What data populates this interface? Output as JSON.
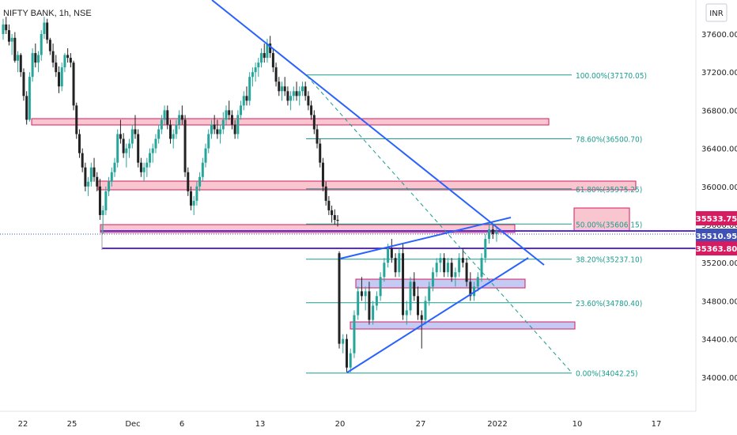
{
  "header": {
    "symbol_label": "NIFTY BANK, 1h, NSE"
  },
  "currency_badge": "INR",
  "colors": {
    "bull": "#26a69a",
    "bear": "#222222",
    "fib": "#1a9c8e",
    "trend": "#2962ff",
    "zone_red_fill": "#f7b8c4",
    "zone_red_stroke": "#d81b60",
    "zone_blue_fill": "#b9c2f3",
    "zone_blue_stroke": "#d81b60",
    "purple_line": "#5b2bd3",
    "tag_bg": "#d81b60",
    "tag_blue": "#3f51b5"
  },
  "chart_data": {
    "type": "candlestick",
    "y_axis": {
      "range": [
        33800,
        37850
      ],
      "ticks": [
        "37600.00",
        "37200.00",
        "36800.00",
        "36400.00",
        "36000.00",
        "35600.00",
        "35200.00",
        "34800.00",
        "34400.00",
        "34000.00"
      ]
    },
    "x_axis": {
      "ticks": [
        "22",
        "25",
        "Dec",
        "6",
        "13",
        "20",
        "27",
        "2022",
        "10",
        "17"
      ]
    },
    "price_tags": [
      {
        "label": "35533.75",
        "value": 35533.75,
        "style": "pink"
      },
      {
        "label": "35510.95",
        "value": 35510.95,
        "style": "blue"
      },
      {
        "label": "35363.80",
        "value": 35363.8,
        "style": "pink"
      }
    ],
    "fibonacci": [
      {
        "label": "100.00%(37170.05)",
        "value": 37170.05
      },
      {
        "label": "78.60%(36500.70)",
        "value": 36500.7
      },
      {
        "label": "61.80%(35975.25)",
        "value": 35975.25
      },
      {
        "label": "50.00%(35606.15)",
        "value": 35606.15
      },
      {
        "label": "38.20%(35237.10)",
        "value": 35237.1
      },
      {
        "label": "23.60%(34780.40)",
        "value": 34780.4
      },
      {
        "label": "0.00%(34042.25)",
        "value": 34042.25
      }
    ],
    "candles": [
      [
        37600,
        37760,
        37540,
        37700
      ],
      [
        37700,
        37780,
        37600,
        37640
      ],
      [
        37640,
        37700,
        37480,
        37520
      ],
      [
        37520,
        37600,
        37380,
        37560
      ],
      [
        37560,
        37620,
        37300,
        37320
      ],
      [
        37320,
        37420,
        37200,
        37380
      ],
      [
        37380,
        37400,
        37150,
        37200
      ],
      [
        37200,
        37240,
        36900,
        36950
      ],
      [
        36950,
        37000,
        36650,
        36700
      ],
      [
        36700,
        37200,
        36680,
        37150
      ],
      [
        37150,
        37450,
        37100,
        37400
      ],
      [
        37400,
        37500,
        37250,
        37300
      ],
      [
        37300,
        37420,
        37200,
        37380
      ],
      [
        37380,
        37640,
        37320,
        37600
      ],
      [
        37600,
        37780,
        37550,
        37720
      ],
      [
        37720,
        37760,
        37500,
        37540
      ],
      [
        37540,
        37560,
        37380,
        37420
      ],
      [
        37420,
        37500,
        37250,
        37300
      ],
      [
        37300,
        37380,
        37150,
        37200
      ],
      [
        37200,
        37260,
        36980,
        37050
      ],
      [
        37050,
        37300,
        37000,
        37250
      ],
      [
        37250,
        37400,
        37200,
        37380
      ],
      [
        37380,
        37450,
        37300,
        37350
      ],
      [
        37350,
        37400,
        37250,
        37300
      ],
      [
        37300,
        37320,
        36800,
        36850
      ],
      [
        36850,
        36880,
        36500,
        36550
      ],
      [
        36550,
        36600,
        36300,
        36350
      ],
      [
        36350,
        36400,
        36150,
        36200
      ],
      [
        36200,
        36250,
        35950,
        36000
      ],
      [
        36000,
        36100,
        35900,
        36050
      ],
      [
        36050,
        36250,
        36000,
        36200
      ],
      [
        36200,
        36300,
        36050,
        36100
      ],
      [
        36100,
        36150,
        35950,
        36000
      ],
      [
        36000,
        36080,
        35650,
        35700
      ],
      [
        35700,
        35800,
        35500,
        35750
      ],
      [
        35750,
        36000,
        35700,
        35950
      ],
      [
        35950,
        36100,
        35900,
        36050
      ],
      [
        36050,
        36200,
        36000,
        36150
      ],
      [
        36150,
        36300,
        36100,
        36250
      ],
      [
        36250,
        36600,
        36200,
        36550
      ],
      [
        36550,
        36700,
        36450,
        36500
      ],
      [
        36500,
        36560,
        36300,
        36350
      ],
      [
        36350,
        36450,
        36200,
        36400
      ],
      [
        36400,
        36500,
        36300,
        36450
      ],
      [
        36450,
        36650,
        36400,
        36600
      ],
      [
        36600,
        36750,
        36500,
        36550
      ],
      [
        36550,
        36600,
        36200,
        36250
      ],
      [
        36250,
        36300,
        36100,
        36150
      ],
      [
        36150,
        36250,
        36050,
        36200
      ],
      [
        36200,
        36300,
        36100,
        36250
      ],
      [
        36250,
        36400,
        36200,
        36350
      ],
      [
        36350,
        36450,
        36250,
        36400
      ],
      [
        36400,
        36550,
        36350,
        36500
      ],
      [
        36500,
        36650,
        36450,
        36600
      ],
      [
        36600,
        36750,
        36550,
        36700
      ],
      [
        36700,
        36850,
        36650,
        36800
      ],
      [
        36800,
        36850,
        36600,
        36650
      ],
      [
        36650,
        36700,
        36450,
        36500
      ],
      [
        36500,
        36600,
        36400,
        36550
      ],
      [
        36550,
        36700,
        36500,
        36650
      ],
      [
        36650,
        36800,
        36600,
        36750
      ],
      [
        36750,
        36850,
        36650,
        36700
      ],
      [
        36700,
        36750,
        36100,
        36150
      ],
      [
        36150,
        36200,
        35900,
        35950
      ],
      [
        35950,
        36000,
        35750,
        35800
      ],
      [
        35800,
        35900,
        35700,
        35850
      ],
      [
        35850,
        36050,
        35800,
        36000
      ],
      [
        36000,
        36150,
        35950,
        36100
      ],
      [
        36100,
        36300,
        36050,
        36250
      ],
      [
        36250,
        36450,
        36200,
        36400
      ],
      [
        36400,
        36600,
        36350,
        36550
      ],
      [
        36550,
        36700,
        36500,
        36650
      ],
      [
        36650,
        36750,
        36550,
        36600
      ],
      [
        36600,
        36700,
        36500,
        36550
      ],
      [
        36550,
        36650,
        36450,
        36600
      ],
      [
        36600,
        36780,
        36550,
        36700
      ],
      [
        36700,
        36850,
        36650,
        36800
      ],
      [
        36800,
        36900,
        36700,
        36750
      ],
      [
        36750,
        36800,
        36600,
        36650
      ],
      [
        36650,
        36700,
        36500,
        36550
      ],
      [
        36550,
        36800,
        36500,
        36750
      ],
      [
        36750,
        36900,
        36700,
        36850
      ],
      [
        36850,
        37000,
        36800,
        36950
      ],
      [
        36950,
        37050,
        36850,
        36900
      ],
      [
        36900,
        37200,
        36850,
        37150
      ],
      [
        37150,
        37250,
        37050,
        37200
      ],
      [
        37200,
        37300,
        37100,
        37250
      ],
      [
        37250,
        37350,
        37150,
        37300
      ],
      [
        37300,
        37450,
        37250,
        37400
      ],
      [
        37400,
        37500,
        37300,
        37350
      ],
      [
        37350,
        37550,
        37300,
        37500
      ],
      [
        37500,
        37580,
        37350,
        37400
      ],
      [
        37400,
        37450,
        37200,
        37250
      ],
      [
        37250,
        37300,
        37050,
        37100
      ],
      [
        37100,
        37150,
        36950,
        37000
      ],
      [
        37000,
        37100,
        36900,
        37050
      ],
      [
        37050,
        37150,
        36950,
        37000
      ],
      [
        37000,
        37050,
        36850,
        36900
      ],
      [
        36900,
        37000,
        36800,
        36950
      ],
      [
        36950,
        37050,
        36900,
        37000
      ],
      [
        37000,
        37100,
        36900,
        36950
      ],
      [
        36950,
        37050,
        36850,
        37000
      ],
      [
        37000,
        37100,
        36950,
        37050
      ],
      [
        37050,
        37100,
        36900,
        36950
      ],
      [
        36950,
        37000,
        36800,
        36850
      ],
      [
        36850,
        36900,
        36700,
        36750
      ],
      [
        36750,
        36800,
        36550,
        36600
      ],
      [
        36600,
        36650,
        36400,
        36450
      ],
      [
        36450,
        36500,
        36200,
        36250
      ],
      [
        36250,
        36300,
        35950,
        36000
      ],
      [
        36000,
        36050,
        35800,
        35850
      ],
      [
        35850,
        35900,
        35700,
        35750
      ],
      [
        35750,
        35800,
        35620,
        35700
      ],
      [
        35700,
        35760,
        35600,
        35650
      ],
      [
        35650,
        35700,
        35580,
        35640
      ],
      [
        35300,
        35320,
        34300,
        34350
      ],
      [
        34350,
        34450,
        34250,
        34400
      ],
      [
        34400,
        34450,
        34050,
        34100
      ],
      [
        34100,
        34300,
        34050,
        34250
      ],
      [
        34250,
        34700,
        34200,
        34650
      ],
      [
        34650,
        34950,
        34600,
        34900
      ],
      [
        34900,
        35050,
        34800,
        34850
      ],
      [
        34850,
        34950,
        34700,
        34900
      ],
      [
        34900,
        35000,
        34550,
        34600
      ],
      [
        34600,
        34800,
        34550,
        34750
      ],
      [
        34750,
        34900,
        34700,
        34850
      ],
      [
        34850,
        35100,
        34800,
        35050
      ],
      [
        35050,
        35250,
        35000,
        35200
      ],
      [
        35200,
        35400,
        35150,
        35350
      ],
      [
        35350,
        35450,
        35200,
        35250
      ],
      [
        35250,
        35300,
        35050,
        35100
      ],
      [
        35100,
        35350,
        35050,
        35300
      ],
      [
        35300,
        35400,
        34600,
        34650
      ],
      [
        34650,
        34800,
        34550,
        34700
      ],
      [
        34700,
        35050,
        34650,
        35000
      ],
      [
        35000,
        35100,
        34800,
        34850
      ],
      [
        34850,
        34950,
        34600,
        34650
      ],
      [
        34650,
        34700,
        34300,
        34600
      ],
      [
        34600,
        34850,
        34550,
        34800
      ],
      [
        34800,
        35000,
        34750,
        34950
      ],
      [
        34950,
        35150,
        34900,
        35100
      ],
      [
        35100,
        35250,
        35050,
        35200
      ],
      [
        35200,
        35300,
        35100,
        35250
      ],
      [
        35250,
        35300,
        35050,
        35100
      ],
      [
        35100,
        35250,
        35050,
        35200
      ],
      [
        35200,
        35250,
        35000,
        35050
      ],
      [
        35050,
        35150,
        34950,
        35100
      ],
      [
        35100,
        35300,
        35050,
        35250
      ],
      [
        35250,
        35350,
        35150,
        35200
      ],
      [
        35200,
        35250,
        34950,
        35000
      ],
      [
        35000,
        35100,
        34800,
        34850
      ],
      [
        34850,
        35000,
        34800,
        34950
      ],
      [
        34950,
        35100,
        34900,
        35050
      ],
      [
        35050,
        35300,
        35000,
        35250
      ],
      [
        35250,
        35500,
        35200,
        35450
      ],
      [
        35450,
        35600,
        35400,
        35550
      ],
      [
        35550,
        35600,
        35450,
        35500
      ],
      [
        35500,
        35580,
        35420,
        35530
      ]
    ]
  }
}
